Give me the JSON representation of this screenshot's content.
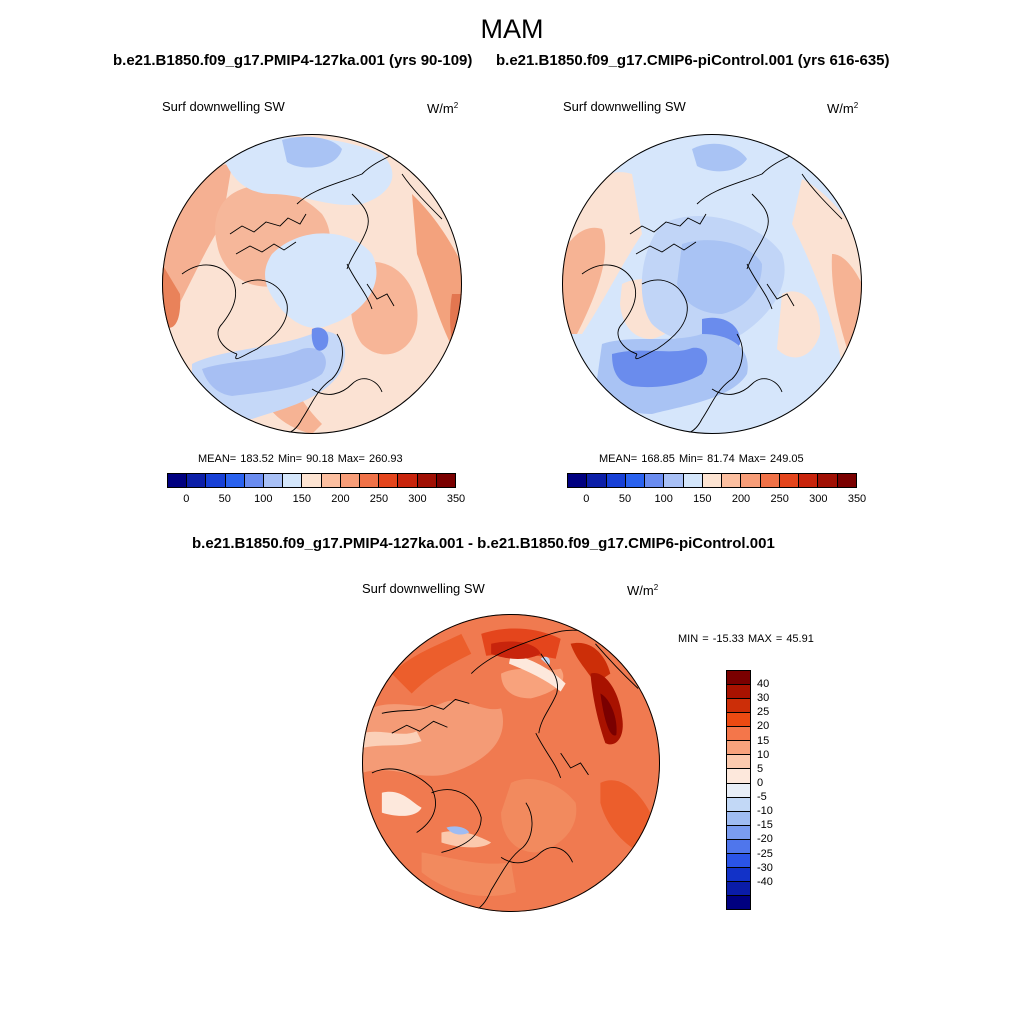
{
  "season": "MAM",
  "panel_a": {
    "title": "b.e21.B1850.f09_g17.PMIP4-127ka.001 (yrs 90-109)",
    "variable": "Surf downwelling SW",
    "units": "W/m",
    "units_sup": "2",
    "stats": "MEAN= 183.52  Min=  90.18  Max= 260.93"
  },
  "panel_b": {
    "title": "b.e21.B1850.f09_g17.CMIP6-piControl.001 (yrs 616-635)",
    "variable": "Surf downwelling SW",
    "units": "W/m",
    "units_sup": "2",
    "stats": "MEAN= 168.85  Min=  81.74  Max= 249.05"
  },
  "panel_diff": {
    "title": "b.e21.B1850.f09_g17.PMIP4-127ka.001 - b.e21.B1850.f09_g17.CMIP6-piControl.001",
    "variable": "Surf downwelling SW",
    "units": "W/m",
    "units_sup": "2",
    "stats": "MIN = -15.33 MAX =  45.91"
  },
  "colorbar_abs": {
    "colors": [
      "#000080",
      "#0c1fa8",
      "#1740d6",
      "#2a62ef",
      "#6a8cf0",
      "#a8c0f6",
      "#d4e6fb",
      "#fde4d2",
      "#fcbfa0",
      "#f79d78",
      "#f07248",
      "#e4451c",
      "#c8240c",
      "#a01004",
      "#7a0000"
    ],
    "ticks": [
      "0",
      "50",
      "100",
      "150",
      "200",
      "250",
      "300",
      "350"
    ]
  },
  "colorbar_diff": {
    "colors": [
      "#7a0000",
      "#a81200",
      "#cc2e08",
      "#ec4a12",
      "#f4764a",
      "#f8a27c",
      "#fccaae",
      "#fde8dc",
      "#e8eef7",
      "#c2d8f6",
      "#9fbcf2",
      "#7a9cf0",
      "#4f76ec",
      "#2a54e8",
      "#1232c8",
      "#0a1ca8",
      "#000080"
    ],
    "labels": [
      "40",
      "30",
      "25",
      "20",
      "15",
      "10",
      "5",
      "0",
      "-5",
      "-10",
      "-15",
      "-20",
      "-25",
      "-30",
      "-40"
    ]
  }
}
